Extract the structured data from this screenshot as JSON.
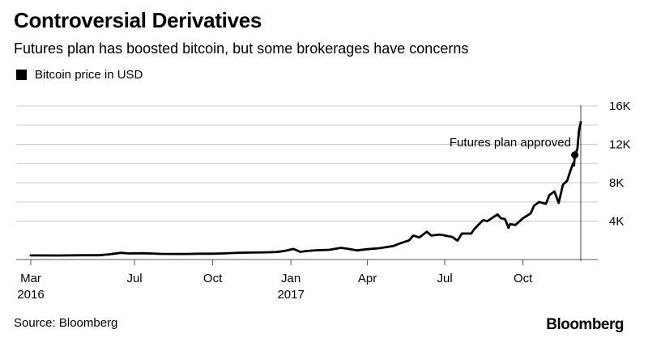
{
  "header": {
    "title": "Controversial Derivatives",
    "subtitle": "Futures plan has boosted bitcoin, but some brokerages have concerns"
  },
  "footer": {
    "source": "Source: Bloomberg",
    "brand": "Bloomberg"
  },
  "chart_data": {
    "type": "line",
    "title": "Controversial Derivatives",
    "subtitle": "Futures plan has boosted bitcoin, but some brokerages have concerns",
    "xlabel": "",
    "ylabel": "",
    "ylim": [
      0,
      16000
    ],
    "xlim": [
      "2016-03-01",
      "2017-12-08"
    ],
    "grid": true,
    "legend_position": "top-left",
    "y_ticks": [
      {
        "value": 4000,
        "label": "4K"
      },
      {
        "value": 8000,
        "label": "8K"
      },
      {
        "value": 12000,
        "label": "12K"
      },
      {
        "value": 16000,
        "label": "16K"
      }
    ],
    "x_ticks": [
      {
        "date": "2016-03-01",
        "label": "Mar",
        "sublabel": "2016"
      },
      {
        "date": "2016-07-01",
        "label": "Jul",
        "sublabel": ""
      },
      {
        "date": "2016-10-01",
        "label": "Oct",
        "sublabel": ""
      },
      {
        "date": "2017-01-01",
        "label": "Jan",
        "sublabel": "2017"
      },
      {
        "date": "2017-04-01",
        "label": "Apr",
        "sublabel": ""
      },
      {
        "date": "2017-07-01",
        "label": "Jul",
        "sublabel": ""
      },
      {
        "date": "2017-10-01",
        "label": "Oct",
        "sublabel": ""
      }
    ],
    "series": [
      {
        "name": "Bitcoin price in USD",
        "color": "#000000",
        "points": [
          [
            "2016-03-01",
            430
          ],
          [
            "2016-04-01",
            420
          ],
          [
            "2016-05-01",
            450
          ],
          [
            "2016-05-20",
            450
          ],
          [
            "2016-06-01",
            540
          ],
          [
            "2016-06-15",
            700
          ],
          [
            "2016-06-25",
            630
          ],
          [
            "2016-07-10",
            660
          ],
          [
            "2016-08-01",
            590
          ],
          [
            "2016-08-15",
            580
          ],
          [
            "2016-09-01",
            580
          ],
          [
            "2016-09-15",
            610
          ],
          [
            "2016-10-01",
            610
          ],
          [
            "2016-10-15",
            640
          ],
          [
            "2016-11-01",
            710
          ],
          [
            "2016-11-15",
            720
          ],
          [
            "2016-12-01",
            750
          ],
          [
            "2016-12-15",
            780
          ],
          [
            "2016-12-25",
            900
          ],
          [
            "2017-01-04",
            1100
          ],
          [
            "2017-01-12",
            800
          ],
          [
            "2017-01-20",
            890
          ],
          [
            "2017-02-01",
            970
          ],
          [
            "2017-02-15",
            1010
          ],
          [
            "2017-03-01",
            1220
          ],
          [
            "2017-03-10",
            1100
          ],
          [
            "2017-03-20",
            950
          ],
          [
            "2017-04-01",
            1080
          ],
          [
            "2017-04-15",
            1180
          ],
          [
            "2017-05-01",
            1400
          ],
          [
            "2017-05-10",
            1700
          ],
          [
            "2017-05-20",
            2000
          ],
          [
            "2017-05-25",
            2500
          ],
          [
            "2017-06-01",
            2300
          ],
          [
            "2017-06-10",
            2900
          ],
          [
            "2017-06-15",
            2500
          ],
          [
            "2017-06-25",
            2600
          ],
          [
            "2017-07-01",
            2500
          ],
          [
            "2017-07-10",
            2350
          ],
          [
            "2017-07-16",
            1950
          ],
          [
            "2017-07-21",
            2700
          ],
          [
            "2017-08-01",
            2700
          ],
          [
            "2017-08-05",
            3200
          ],
          [
            "2017-08-15",
            4100
          ],
          [
            "2017-08-20",
            4000
          ],
          [
            "2017-09-01",
            4700
          ],
          [
            "2017-09-05",
            4300
          ],
          [
            "2017-09-10",
            4200
          ],
          [
            "2017-09-14",
            3300
          ],
          [
            "2017-09-16",
            3700
          ],
          [
            "2017-09-22",
            3600
          ],
          [
            "2017-10-01",
            4300
          ],
          [
            "2017-10-10",
            4800
          ],
          [
            "2017-10-14",
            5600
          ],
          [
            "2017-10-20",
            6000
          ],
          [
            "2017-10-28",
            5800
          ],
          [
            "2017-11-01",
            6700
          ],
          [
            "2017-11-07",
            7100
          ],
          [
            "2017-11-12",
            5900
          ],
          [
            "2017-11-17",
            7800
          ],
          [
            "2017-11-22",
            8200
          ],
          [
            "2017-11-26",
            9300
          ],
          [
            "2017-11-29",
            10000
          ],
          [
            "2017-11-30",
            9800
          ],
          [
            "2017-12-01",
            10900
          ],
          [
            "2017-12-04",
            11500
          ],
          [
            "2017-12-06",
            13500
          ],
          [
            "2017-12-08",
            14300
          ]
        ]
      }
    ],
    "annotations": [
      {
        "text": "Futures plan approved",
        "date": "2017-12-01",
        "value": 10900,
        "vertical_line": true
      }
    ]
  }
}
